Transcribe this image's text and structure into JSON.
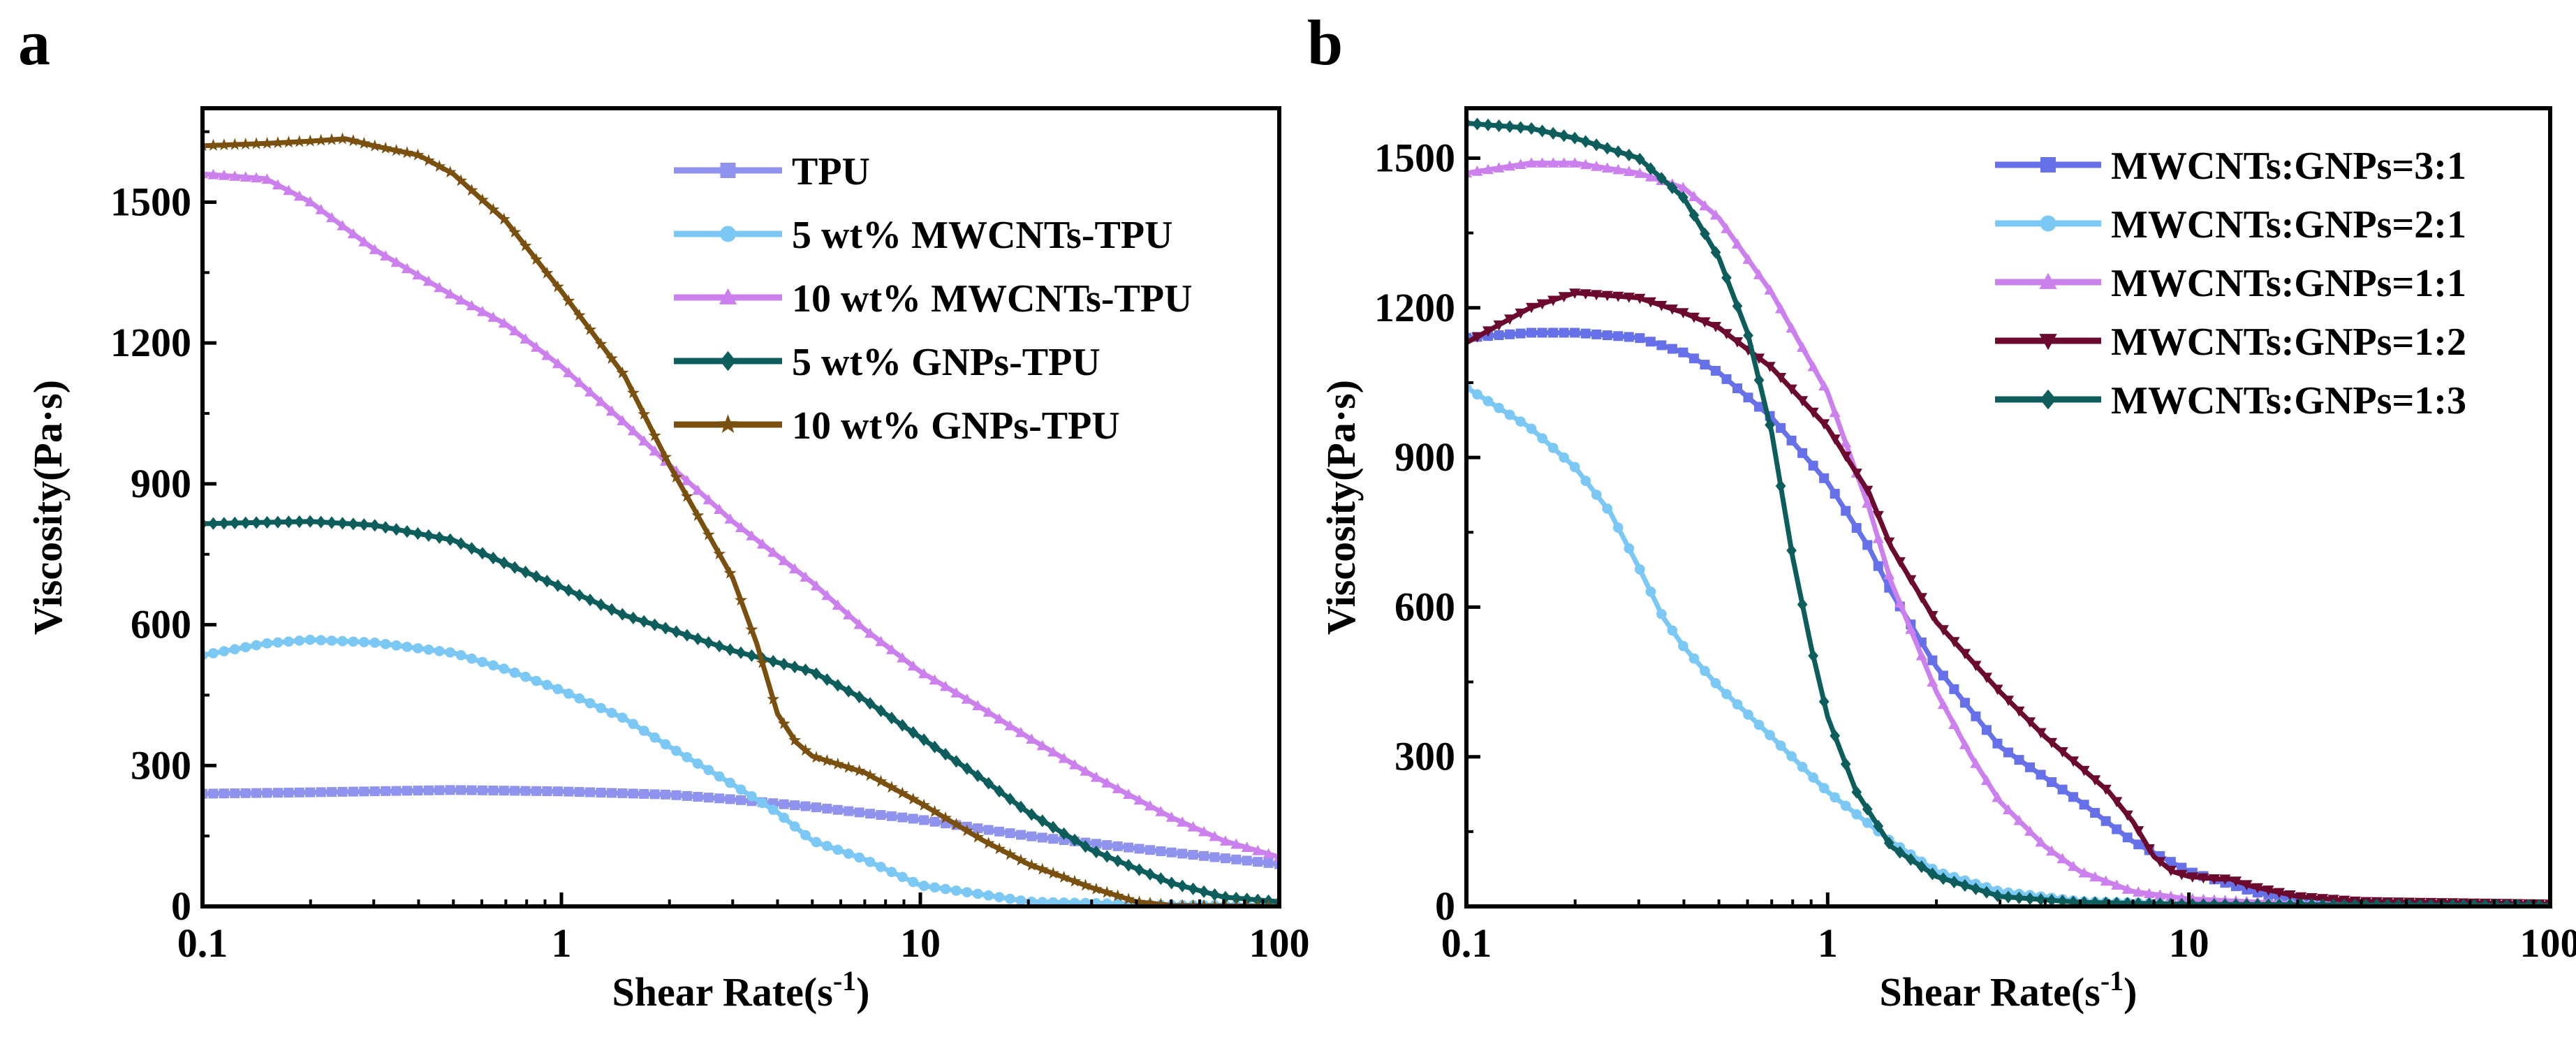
{
  "chart_data": [
    {
      "panel_label": "a",
      "type": "line",
      "xscale": "log",
      "xlim": [
        0.1,
        100
      ],
      "ylim": [
        0,
        1700
      ],
      "xlabel": "Shear Rate(s",
      "xlabel_sup": "-1",
      "xlabel_close": ")",
      "ylabel": "Viscosity(Pa·s)",
      "xticks": [
        0.1,
        1,
        10,
        100
      ],
      "xtick_labels": [
        "0.1",
        "1",
        "10",
        "100"
      ],
      "yticks": [
        0,
        300,
        600,
        900,
        1200,
        1500
      ],
      "ytick_labels": [
        "0",
        "300",
        "600",
        "900",
        "1200",
        "1500"
      ],
      "legend_position": "top-right",
      "series": [
        {
          "name": "TPU",
          "color": "#8f93ee",
          "marker": "square",
          "points": [
            [
              0.1,
              240
            ],
            [
              0.2,
              243
            ],
            [
              0.5,
              248
            ],
            [
              1,
              245
            ],
            [
              2,
              238
            ],
            [
              3,
              228
            ],
            [
              5,
              212
            ],
            [
              10,
              185
            ],
            [
              20,
              150
            ],
            [
              50,
              115
            ],
            [
              100,
              90
            ]
          ]
        },
        {
          "name": "5 wt% MWCNTs-TPU",
          "color": "#7cc8f5",
          "marker": "circle",
          "points": [
            [
              0.1,
              535
            ],
            [
              0.15,
              560
            ],
            [
              0.2,
              568
            ],
            [
              0.3,
              562
            ],
            [
              0.5,
              540
            ],
            [
              0.7,
              505
            ],
            [
              1,
              460
            ],
            [
              1.5,
              400
            ],
            [
              2,
              340
            ],
            [
              3,
              260
            ],
            [
              4,
              200
            ],
            [
              5,
              140
            ],
            [
              7,
              100
            ],
            [
              10,
              45
            ],
            [
              15,
              25
            ],
            [
              20,
              10
            ],
            [
              50,
              3
            ],
            [
              100,
              2
            ]
          ]
        },
        {
          "name": "10 wt% MWCNTs-TPU",
          "color": "#cc80ee",
          "marker": "triangle",
          "points": [
            [
              0.1,
              1560
            ],
            [
              0.15,
              1550
            ],
            [
              0.2,
              1500
            ],
            [
              0.3,
              1400
            ],
            [
              0.5,
              1300
            ],
            [
              0.7,
              1240
            ],
            [
              1,
              1150
            ],
            [
              1.5,
              1030
            ],
            [
              2,
              940
            ],
            [
              3,
              820
            ],
            [
              5,
              690
            ],
            [
              7,
              590
            ],
            [
              10,
              500
            ],
            [
              15,
              420
            ],
            [
              20,
              360
            ],
            [
              30,
              280
            ],
            [
              50,
              190
            ],
            [
              70,
              140
            ],
            [
              100,
              105
            ]
          ]
        },
        {
          "name": "5 wt% GNPs-TPU",
          "color": "#0d5d5d",
          "marker": "diamond",
          "points": [
            [
              0.1,
              815
            ],
            [
              0.2,
              820
            ],
            [
              0.3,
              812
            ],
            [
              0.5,
              780
            ],
            [
              0.7,
              730
            ],
            [
              1,
              680
            ],
            [
              1.5,
              620
            ],
            [
              2,
              590
            ],
            [
              3,
              545
            ],
            [
              5,
              500
            ],
            [
              7,
              440
            ],
            [
              10,
              360
            ],
            [
              15,
              270
            ],
            [
              20,
              200
            ],
            [
              30,
              120
            ],
            [
              50,
              50
            ],
            [
              70,
              20
            ],
            [
              100,
              10
            ]
          ]
        },
        {
          "name": "10 wt% GNPs-TPU",
          "color": "#7a5010",
          "marker": "star",
          "points": [
            [
              0.1,
              1620
            ],
            [
              0.15,
              1625
            ],
            [
              0.2,
              1630
            ],
            [
              0.25,
              1635
            ],
            [
              0.3,
              1620
            ],
            [
              0.4,
              1600
            ],
            [
              0.5,
              1560
            ],
            [
              0.7,
              1460
            ],
            [
              1,
              1310
            ],
            [
              1.5,
              1130
            ],
            [
              2,
              940
            ],
            [
              3,
              700
            ],
            [
              3.5,
              560
            ],
            [
              4,
              410
            ],
            [
              4.5,
              350
            ],
            [
              5,
              320
            ],
            [
              7,
              285
            ],
            [
              10,
              220
            ],
            [
              15,
              140
            ],
            [
              20,
              90
            ],
            [
              30,
              40
            ],
            [
              40,
              10
            ],
            [
              50,
              2
            ],
            [
              100,
              0
            ]
          ]
        }
      ]
    },
    {
      "panel_label": "b",
      "type": "line",
      "xscale": "log",
      "xlim": [
        0.1,
        100
      ],
      "ylim": [
        0,
        1600
      ],
      "xlabel": "Shear Rate(s",
      "xlabel_sup": "-1",
      "xlabel_close": ")",
      "ylabel": "Viscosity(Pa·s)",
      "xticks": [
        0.1,
        1,
        10,
        100
      ],
      "xtick_labels": [
        "0.1",
        "1",
        "10",
        "100"
      ],
      "yticks": [
        0,
        300,
        600,
        900,
        1200,
        1500
      ],
      "ytick_labels": [
        "0",
        "300",
        "600",
        "900",
        "1200",
        "1500"
      ],
      "legend_position": "top-right",
      "series": [
        {
          "name": "MWCNTs:GNPs=3:1",
          "color": "#6670e8",
          "marker": "square",
          "points": [
            [
              0.1,
              1140
            ],
            [
              0.15,
              1150
            ],
            [
              0.2,
              1150
            ],
            [
              0.3,
              1140
            ],
            [
              0.4,
              1110
            ],
            [
              0.5,
              1070
            ],
            [
              0.7,
              980
            ],
            [
              1,
              850
            ],
            [
              1.3,
              720
            ],
            [
              1.5,
              630
            ],
            [
              2,
              480
            ],
            [
              3,
              320
            ],
            [
              5,
              210
            ],
            [
              7,
              130
            ],
            [
              10,
              70
            ],
            [
              15,
              30
            ],
            [
              20,
              10
            ],
            [
              50,
              5
            ],
            [
              100,
              3
            ]
          ]
        },
        {
          "name": "MWCNTs:GNPs=2:1",
          "color": "#7cc8f5",
          "marker": "circle",
          "points": [
            [
              0.1,
              1040
            ],
            [
              0.15,
              960
            ],
            [
              0.2,
              880
            ],
            [
              0.25,
              790
            ],
            [
              0.3,
              680
            ],
            [
              0.35,
              580
            ],
            [
              0.4,
              520
            ],
            [
              0.5,
              440
            ],
            [
              0.7,
              340
            ],
            [
              1,
              230
            ],
            [
              1.5,
              130
            ],
            [
              2,
              70
            ],
            [
              3,
              30
            ],
            [
              5,
              10
            ],
            [
              10,
              5
            ],
            [
              100,
              3
            ]
          ]
        },
        {
          "name": "MWCNTs:GNPs=1:1",
          "color": "#cc80ee",
          "marker": "triangle",
          "points": [
            [
              0.1,
              1470
            ],
            [
              0.15,
              1490
            ],
            [
              0.2,
              1490
            ],
            [
              0.3,
              1470
            ],
            [
              0.4,
              1440
            ],
            [
              0.5,
              1380
            ],
            [
              0.7,
              1230
            ],
            [
              1,
              1030
            ],
            [
              1.3,
              800
            ],
            [
              1.5,
              650
            ],
            [
              2,
              430
            ],
            [
              2.5,
              300
            ],
            [
              3,
              210
            ],
            [
              4,
              120
            ],
            [
              5,
              70
            ],
            [
              7,
              30
            ],
            [
              10,
              15
            ],
            [
              20,
              5
            ],
            [
              100,
              3
            ]
          ]
        },
        {
          "name": "MWCNTs:GNPs=1:2",
          "color": "#6b0a2e",
          "marker": "triangle-down",
          "points": [
            [
              0.1,
              1130
            ],
            [
              0.15,
              1200
            ],
            [
              0.2,
              1230
            ],
            [
              0.3,
              1220
            ],
            [
              0.4,
              1190
            ],
            [
              0.5,
              1160
            ],
            [
              0.7,
              1080
            ],
            [
              1,
              960
            ],
            [
              1.3,
              830
            ],
            [
              1.5,
              720
            ],
            [
              2,
              570
            ],
            [
              3,
              430
            ],
            [
              4,
              340
            ],
            [
              5,
              280
            ],
            [
              6,
              230
            ],
            [
              7,
              170
            ],
            [
              8,
              100
            ],
            [
              9,
              70
            ],
            [
              10,
              60
            ],
            [
              12,
              55
            ],
            [
              13,
              55
            ],
            [
              15,
              40
            ],
            [
              20,
              20
            ],
            [
              30,
              10
            ],
            [
              100,
              5
            ]
          ]
        },
        {
          "name": "MWCNTs:GNPs=1:3",
          "color": "#0d5d5d",
          "marker": "diamond",
          "points": [
            [
              0.1,
              1570
            ],
            [
              0.15,
              1560
            ],
            [
              0.2,
              1540
            ],
            [
              0.3,
              1500
            ],
            [
              0.4,
              1420
            ],
            [
              0.5,
              1300
            ],
            [
              0.6,
              1150
            ],
            [
              0.7,
              950
            ],
            [
              0.8,
              700
            ],
            [
              0.9,
              520
            ],
            [
              1,
              380
            ],
            [
              1.2,
              230
            ],
            [
              1.5,
              120
            ],
            [
              2,
              60
            ],
            [
              3,
              20
            ],
            [
              5,
              8
            ],
            [
              10,
              4
            ],
            [
              100,
              2
            ]
          ]
        }
      ]
    }
  ]
}
